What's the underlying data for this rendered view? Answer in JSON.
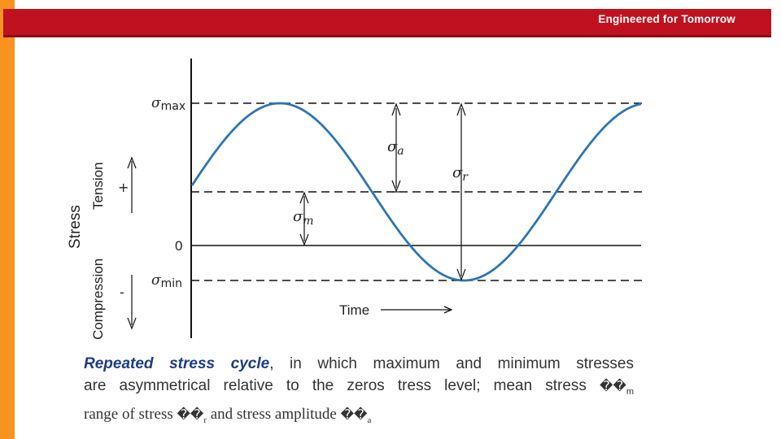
{
  "header": {
    "tagline": "Engineered for Tomorrow",
    "banner_color": "#c0121e",
    "side_bar_color": "#f7931e"
  },
  "diagram": {
    "labels": {
      "sigma_max": "σmax",
      "sigma_min": "σmin",
      "sigma_a": "σa",
      "sigma_r": "σr",
      "sigma_m": "σm",
      "zero": "0",
      "time": "Time",
      "stress_axis": "Stress",
      "tension": "Tension",
      "compression": "Compression",
      "plus": "+",
      "minus": "-"
    },
    "curve_color": "#2e75b6"
  },
  "caption": {
    "term": "Repeated stress cycle",
    "line1_rest": ", in which maximum and minimum stresses",
    "line2": "are asymmetrical relative to the zeros tress level; mean stress",
    "line2_symbol": "��",
    "line2_sub": "m",
    "line3_a": "range of stress",
    "line3_symbol1": "��",
    "line3_sub1": "r",
    "line3_b": "and stress amplitude",
    "line3_symbol2": "��",
    "line3_sub2": "a"
  }
}
